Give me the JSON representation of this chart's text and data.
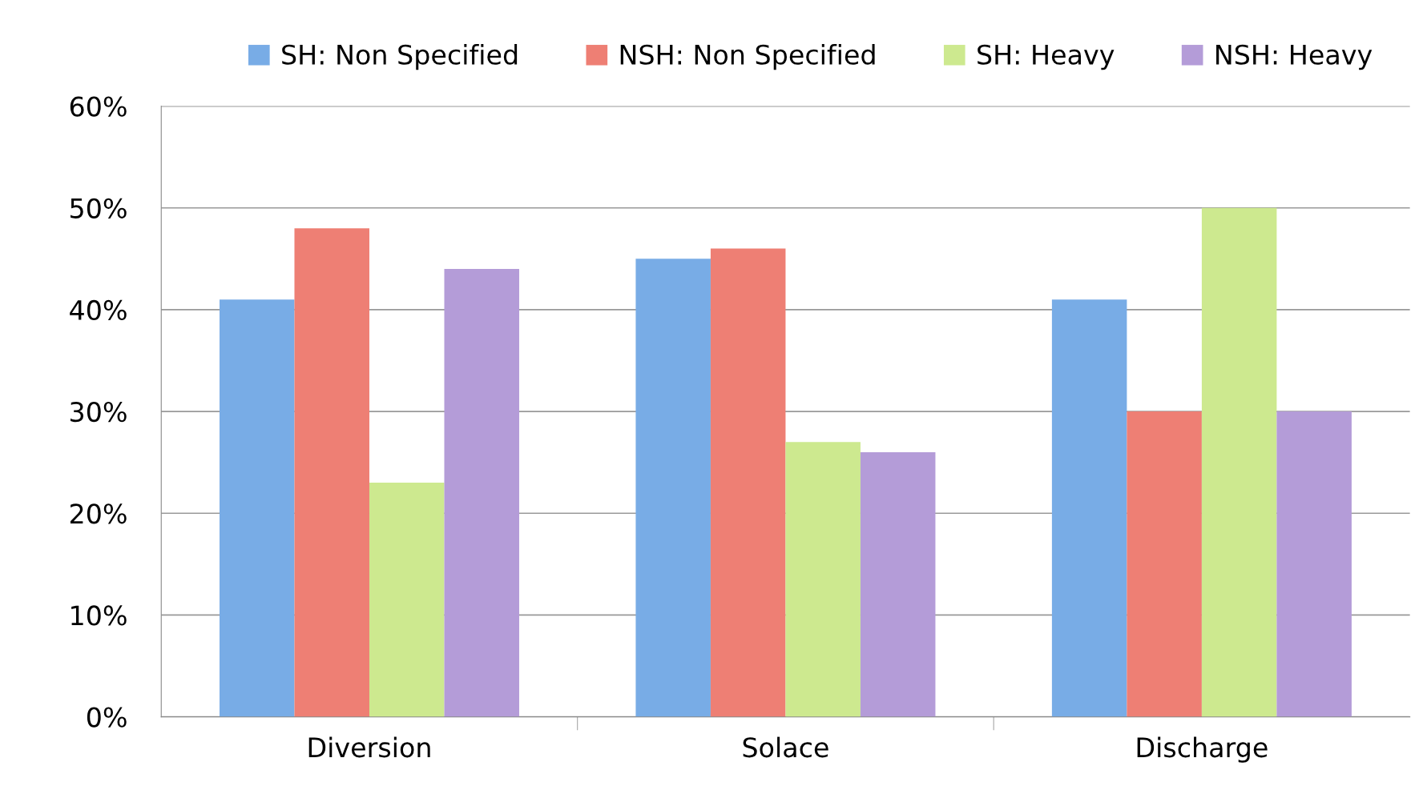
{
  "chart_data": {
    "type": "bar",
    "categories": [
      "Diversion",
      "Solace",
      "Discharge"
    ],
    "series": [
      {
        "name": "SH: Non Specified",
        "color": "#78ace6",
        "values": [
          41,
          45,
          41
        ]
      },
      {
        "name": "NSH: Non Specified",
        "color": "#ee7f74",
        "values": [
          48,
          46,
          30
        ]
      },
      {
        "name": "SH: Heavy",
        "color": "#cde98f",
        "values": [
          23,
          27,
          50
        ]
      },
      {
        "name": "NSH: Heavy",
        "color": "#b49cd8",
        "values": [
          44,
          26,
          30
        ]
      }
    ],
    "ylim": [
      0,
      60
    ],
    "yticks": [
      {
        "value": 0,
        "label": "0%"
      },
      {
        "value": 10,
        "label": "10%"
      },
      {
        "value": 20,
        "label": "20%"
      },
      {
        "value": 30,
        "label": "30%"
      },
      {
        "value": 40,
        "label": "40%"
      },
      {
        "value": 50,
        "label": "50%"
      },
      {
        "value": 60,
        "label": "60%"
      }
    ],
    "grid": "y",
    "legend": "top"
  }
}
